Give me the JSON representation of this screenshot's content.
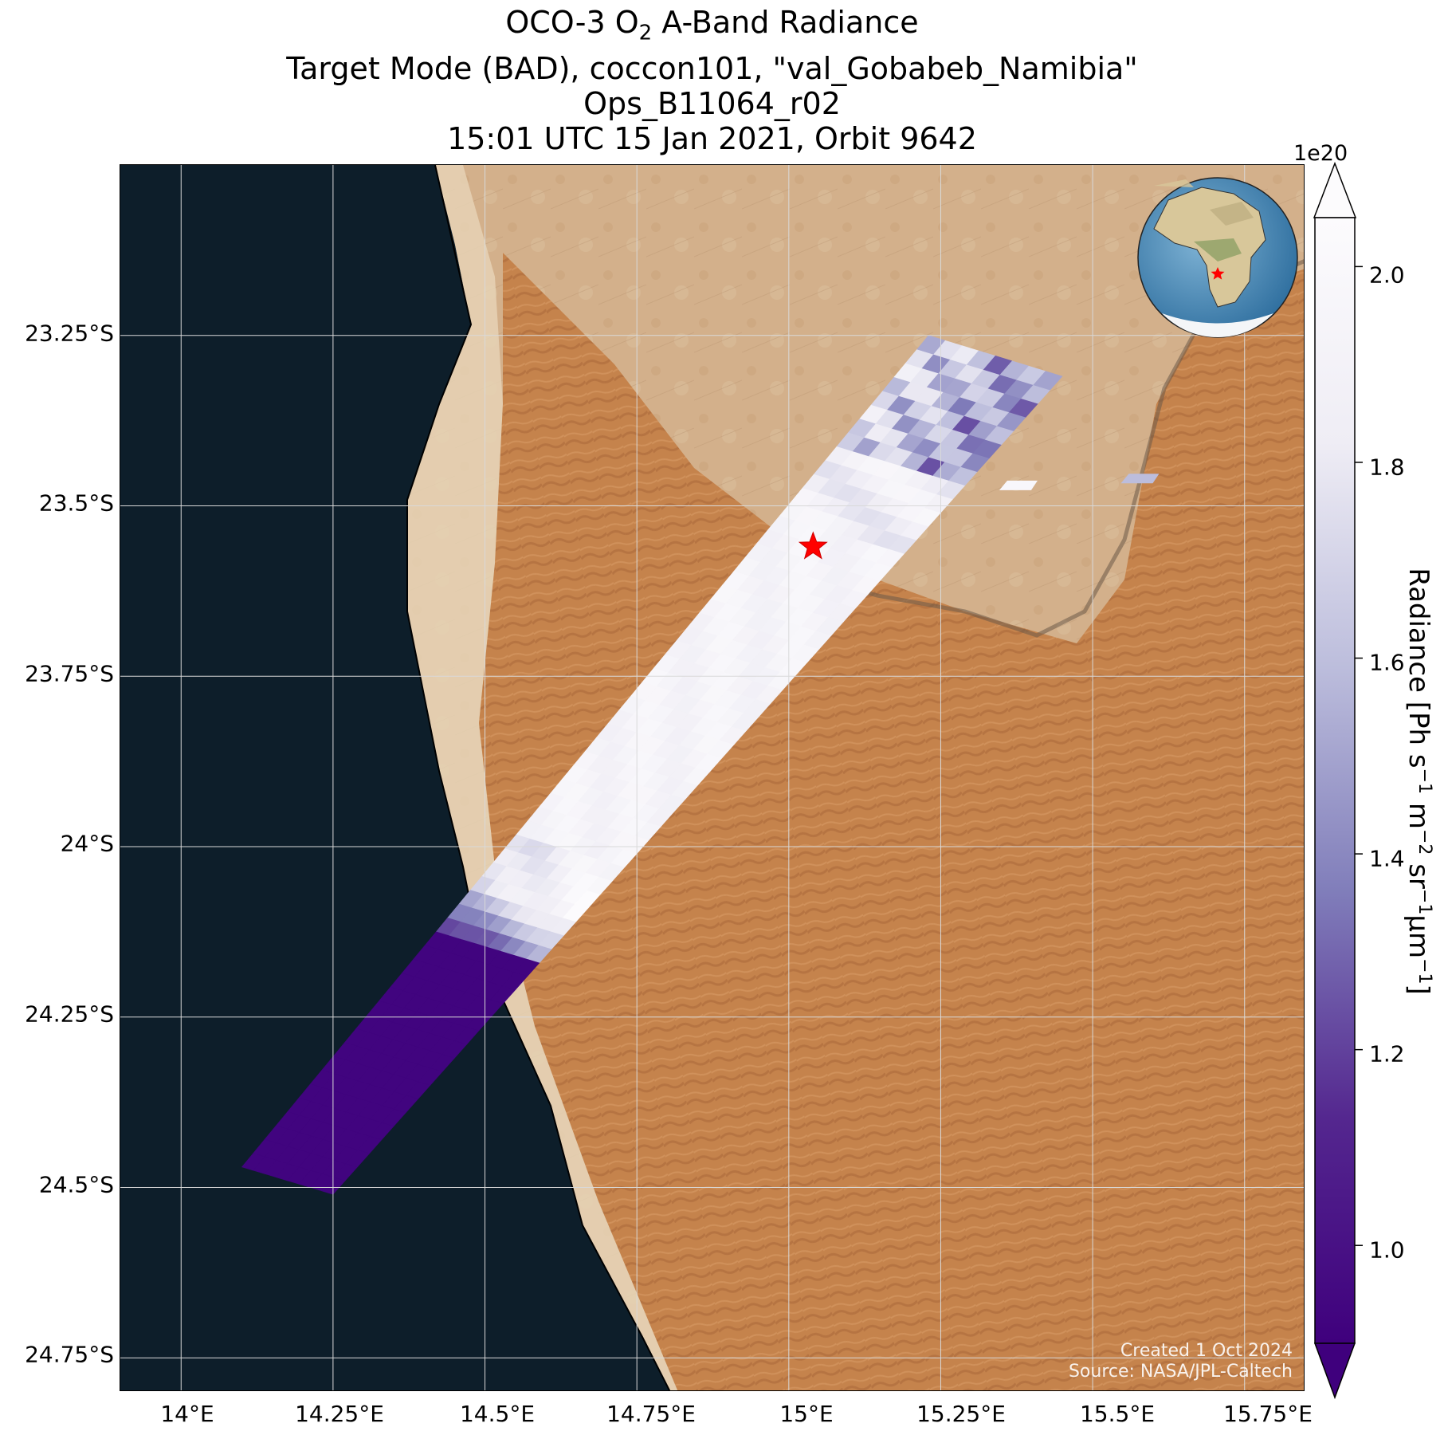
{
  "title": {
    "line1_prefix": "OCO-3 O",
    "line1_sub": "2",
    "line1_suffix": " A-Band Radiance",
    "line2": "Target Mode (BAD), coccon101, \"val_Gobabeb_Namibia\"",
    "line3": "Ops_B11064_r02",
    "line4": "15:01 UTC 15 Jan 2021, Orbit 9642"
  },
  "map": {
    "lon_ticks": [
      "14°E",
      "14.25°E",
      "14.5°E",
      "14.75°E",
      "15°E",
      "15.25°E",
      "15.5°E",
      "15.75°E"
    ],
    "lat_ticks": [
      "23.25°S",
      "23.5°S",
      "23.75°S",
      "24°S",
      "24.25°S",
      "24.5°S",
      "24.75°S"
    ],
    "lon_range": [
      13.9,
      15.85
    ],
    "lat_range": [
      -23.0,
      -24.8
    ],
    "target_site": {
      "name": "val_Gobabeb_Namibia",
      "lon": 15.04,
      "lat": -23.56,
      "marker": "red-star"
    },
    "colors": {
      "ocean": "#0d1e2a",
      "desert": "#c98a55",
      "gravel_plain": "#d1ad86",
      "gridline": "#d9d9d9",
      "target": "#ff0000"
    }
  },
  "credits": {
    "created": "Created 1 Oct 2024",
    "source": "Source: NASA/JPL-Caltech"
  },
  "colorbar": {
    "exponent": "1e20",
    "ticks": [
      "1.0",
      "1.2",
      "1.4",
      "1.6",
      "1.8",
      "2.0"
    ],
    "range": [
      0.9,
      2.05
    ],
    "title_prefix": "Radiance [Ph s",
    "title_sup1": "−1",
    "title_mid1": " m",
    "title_sup2": "−2",
    "title_mid2": " sr",
    "title_sup3": "−1",
    "title_mid3": "μm",
    "title_sup4": "−1",
    "title_suffix": "]",
    "colormap": "Purples_r",
    "extend": "both"
  },
  "inset_globe": {
    "marker": "red-star"
  }
}
